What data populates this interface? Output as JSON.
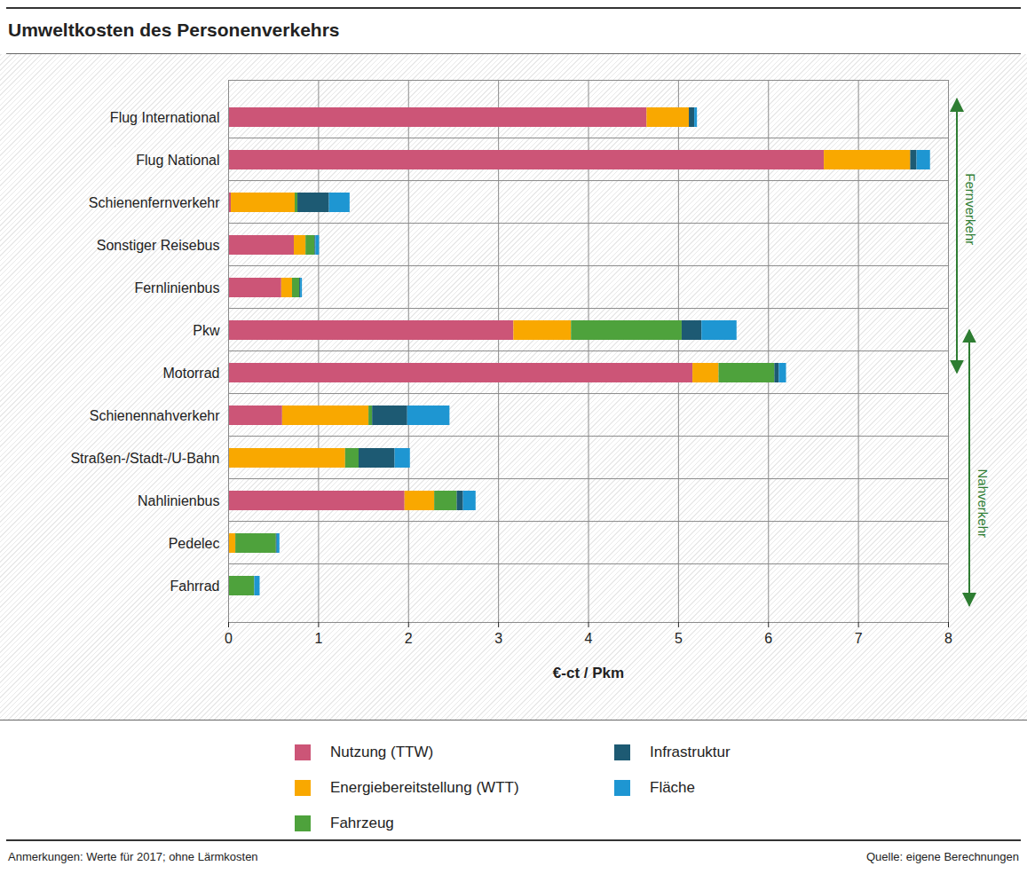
{
  "chart_data": {
    "type": "bar",
    "orientation": "horizontal",
    "stacked": true,
    "title": "Umweltkosten des Personenverkehrs",
    "x_label": "€-ct / Pkm",
    "categories": [
      "Flug International",
      "Flug National",
      "Schienenfernverkehr",
      "Sonstiger Reisebus",
      "Fernlinienbus",
      "Pkw",
      "Motorrad",
      "Schienennahverkehr",
      "Straßen-/Stadt-/U-Bahn",
      "Nahlinienbus",
      "Pedelec",
      "Fahrrad"
    ],
    "series": [
      {
        "name": "Nutzung (TTW)",
        "color": "#cc5577",
        "values": [
          4.65,
          6.62,
          0.03,
          0.73,
          0.59,
          3.17,
          5.16,
          0.6,
          0,
          1.96,
          0,
          0
        ]
      },
      {
        "name": "Energiebereitstellung (WTT)",
        "color": "#f9a800",
        "values": [
          0.47,
          0.96,
          0.71,
          0.13,
          0.12,
          0.64,
          0.29,
          0.96,
          1.3,
          0.33,
          0.08,
          0
        ]
      },
      {
        "name": "Fahrzeug",
        "color": "#4ea23c",
        "values": [
          0,
          0,
          0.03,
          0.1,
          0.08,
          1.23,
          0.62,
          0.04,
          0.15,
          0.25,
          0.45,
          0.29
        ]
      },
      {
        "name": "Infrastruktur",
        "color": "#1d5a73",
        "values": [
          0.06,
          0.07,
          0.35,
          0.01,
          0.01,
          0.22,
          0.05,
          0.39,
          0.4,
          0.07,
          0.01,
          0
        ]
      },
      {
        "name": "Fläche",
        "color": "#1e96d2",
        "values": [
          0.03,
          0.15,
          0.23,
          0.04,
          0.02,
          0.39,
          0.08,
          0.47,
          0.17,
          0.14,
          0.03,
          0.06
        ]
      }
    ],
    "xlim": [
      0,
      8
    ],
    "xticks": [
      0,
      1,
      2,
      3,
      4,
      5,
      6,
      7,
      8
    ],
    "grid": true,
    "legend": "bottom",
    "groups": [
      {
        "label": "Fernverkehr",
        "from": "Flug International",
        "to": "Motorrad"
      },
      {
        "label": "Nahverkehr",
        "from": "Pkw",
        "to": "Fahrrad"
      }
    ],
    "notes": "Anmerkungen: Werte für 2017; ohne Lärmkosten",
    "source": "Quelle: eigene Berechnungen"
  }
}
